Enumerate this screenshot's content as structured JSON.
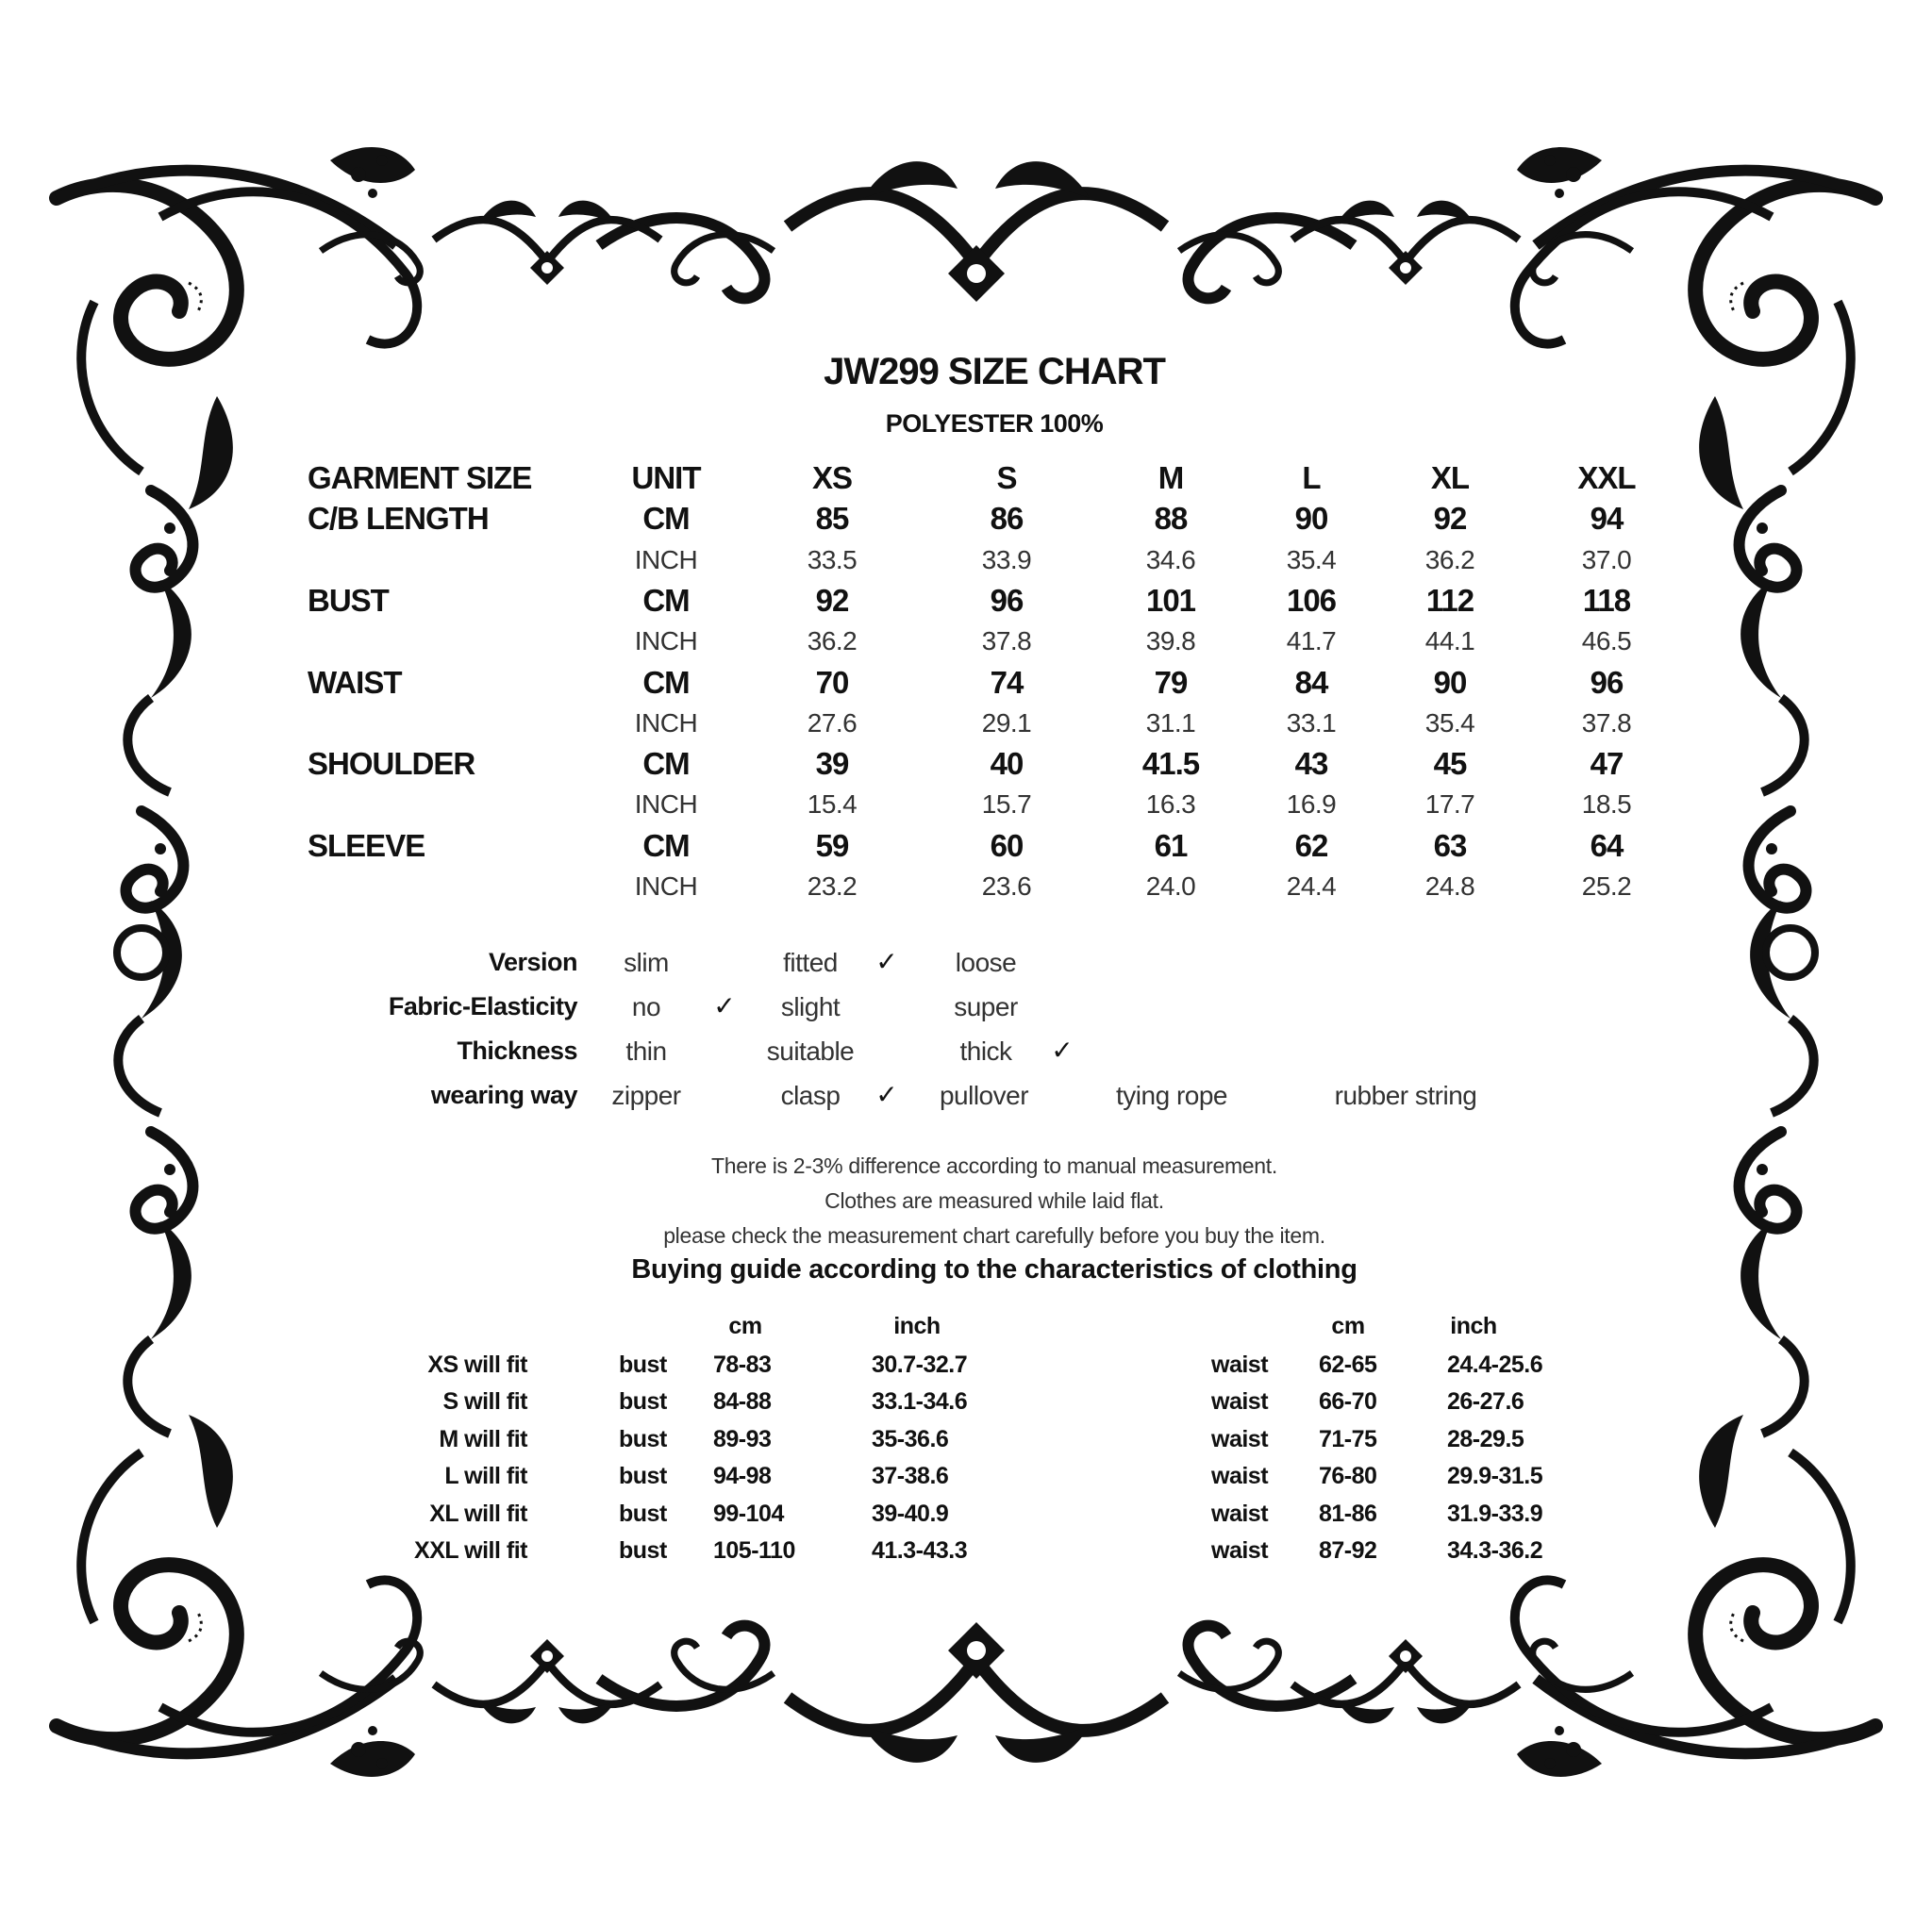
{
  "title": "JW299 SIZE CHART",
  "subtitle": "POLYESTER 100%",
  "size_table": {
    "header": [
      "GARMENT SIZE",
      "UNIT",
      "XS",
      "S",
      "M",
      "L",
      "XL",
      "XXL"
    ],
    "rows": [
      {
        "label": "C/B LENGTH",
        "cm_unit": "CM",
        "cm": [
          "85",
          "86",
          "88",
          "90",
          "92",
          "94"
        ],
        "inch_unit": "INCH",
        "inch": [
          "33.5",
          "33.9",
          "34.6",
          "35.4",
          "36.2",
          "37.0"
        ]
      },
      {
        "label": "BUST",
        "cm_unit": "CM",
        "cm": [
          "92",
          "96",
          "101",
          "106",
          "112",
          "118"
        ],
        "inch_unit": "INCH",
        "inch": [
          "36.2",
          "37.8",
          "39.8",
          "41.7",
          "44.1",
          "46.5"
        ]
      },
      {
        "label": "WAIST",
        "cm_unit": "CM",
        "cm": [
          "70",
          "74",
          "79",
          "84",
          "90",
          "96"
        ],
        "inch_unit": "INCH",
        "inch": [
          "27.6",
          "29.1",
          "31.1",
          "33.1",
          "35.4",
          "37.8"
        ]
      },
      {
        "label": "SHOULDER",
        "cm_unit": "CM",
        "cm": [
          "39",
          "40",
          "41.5",
          "43",
          "45",
          "47"
        ],
        "inch_unit": "INCH",
        "inch": [
          "15.4",
          "15.7",
          "16.3",
          "16.9",
          "17.7",
          "18.5"
        ]
      },
      {
        "label": "SLEEVE",
        "cm_unit": "CM",
        "cm": [
          "59",
          "60",
          "61",
          "62",
          "63",
          "64"
        ],
        "inch_unit": "INCH",
        "inch": [
          "23.2",
          "23.6",
          "24.0",
          "24.4",
          "24.8",
          "25.2"
        ]
      }
    ]
  },
  "attributes": [
    {
      "label": "Version",
      "options": [
        {
          "text": "slim",
          "checked": false
        },
        {
          "text": "fitted",
          "checked": true
        },
        {
          "text": "loose",
          "checked": false
        }
      ]
    },
    {
      "label": "Fabric-Elasticity",
      "options": [
        {
          "text": "no",
          "checked": true
        },
        {
          "text": "slight",
          "checked": false
        },
        {
          "text": "super",
          "checked": false
        }
      ]
    },
    {
      "label": "Thickness",
      "options": [
        {
          "text": "thin",
          "checked": false
        },
        {
          "text": "suitable",
          "checked": false
        },
        {
          "text": "thick",
          "checked": true
        }
      ]
    },
    {
      "label": "wearing way",
      "options": [
        {
          "text": "zipper",
          "checked": false
        },
        {
          "text": "clasp",
          "checked": true
        },
        {
          "text": "pullover",
          "checked": false
        },
        {
          "text": "tying rope",
          "checked": false
        },
        {
          "text": "rubber string",
          "checked": false
        }
      ]
    }
  ],
  "notes": [
    "There is 2-3% difference according to manual measurement.",
    "Clothes are measured while laid flat.",
    "please check the measurement chart carefully before you buy the item."
  ],
  "buying_guide": {
    "title": "Buying guide according to the characteristics of clothing",
    "cm_header": "cm",
    "inch_header": "inch",
    "rows": [
      {
        "label": "XS will  fit",
        "bust": "bust",
        "bust_cm": "78-83",
        "bust_inch": "30.7-32.7",
        "waist": "waist",
        "waist_cm": "62-65",
        "waist_inch": "24.4-25.6"
      },
      {
        "label": "S will  fit",
        "bust": "bust",
        "bust_cm": "84-88",
        "bust_inch": "33.1-34.6",
        "waist": "waist",
        "waist_cm": "66-70",
        "waist_inch": "26-27.6"
      },
      {
        "label": "M will fit",
        "bust": "bust",
        "bust_cm": "89-93",
        "bust_inch": "35-36.6",
        "waist": "waist",
        "waist_cm": "71-75",
        "waist_inch": "28-29.5"
      },
      {
        "label": "L will fit",
        "bust": "bust",
        "bust_cm": "94-98",
        "bust_inch": "37-38.6",
        "waist": "waist",
        "waist_cm": "76-80",
        "waist_inch": "29.9-31.5"
      },
      {
        "label": "XL will fit",
        "bust": "bust",
        "bust_cm": "99-104",
        "bust_inch": "39-40.9",
        "waist": "waist",
        "waist_cm": "81-86",
        "waist_inch": "31.9-33.9"
      },
      {
        "label": "XXL will fit",
        "bust": "bust",
        "bust_cm": "105-110",
        "bust_inch": "41.3-43.3",
        "waist": "waist",
        "waist_cm": "87-92",
        "waist_inch": "34.3-36.2"
      }
    ]
  },
  "check_icon": "checkmark-icon",
  "frame_icon": "ornamental-baroque-frame"
}
